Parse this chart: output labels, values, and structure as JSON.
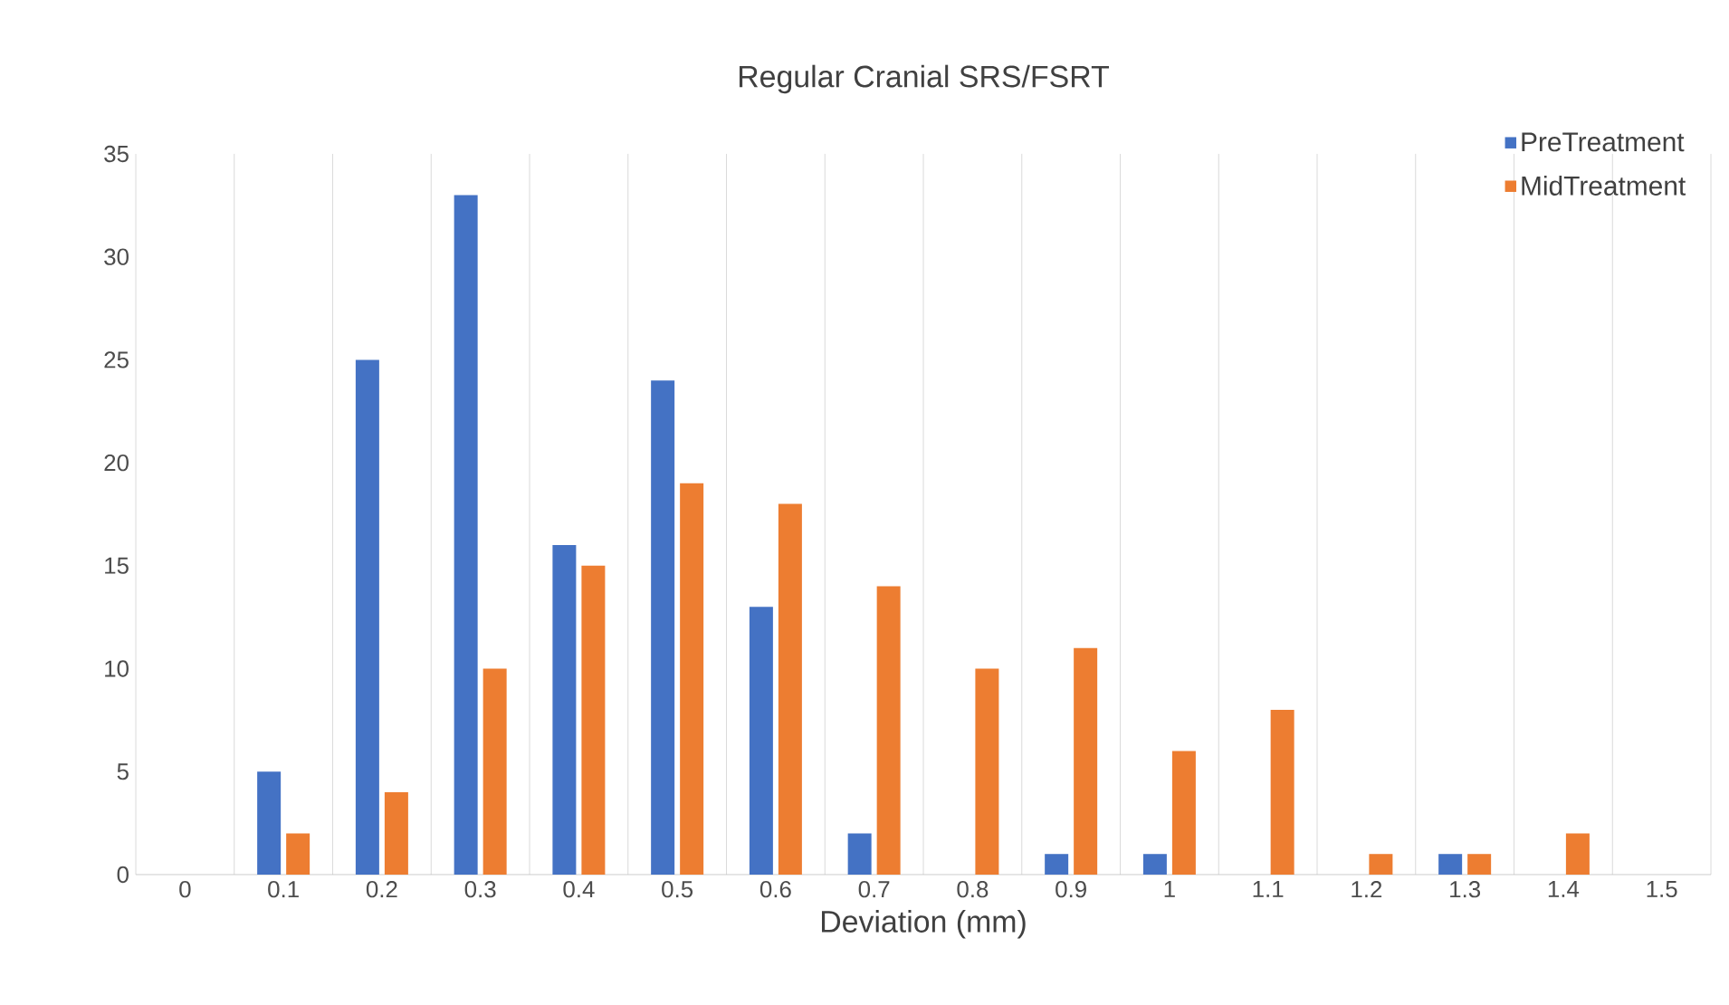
{
  "chart_data": {
    "type": "bar",
    "title": "Regular  Cranial SRS/FSRT",
    "xlabel": "Deviation (mm)",
    "categories": [
      "0",
      "0.1",
      "0.2",
      "0.3",
      "0.4",
      "0.5",
      "0.6",
      "0.7",
      "0.8",
      "0.9",
      "1",
      "1.1",
      "1.2",
      "1.3",
      "1.4",
      "1.5"
    ],
    "series": [
      {
        "name": "PreTreatment",
        "color": "#4472c4",
        "values": [
          0,
          5,
          25,
          33,
          16,
          24,
          13,
          2,
          0,
          1,
          1,
          0,
          0,
          1,
          0,
          null
        ]
      },
      {
        "name": "MidTreatment",
        "color": "#ed7d31",
        "values": [
          0,
          2,
          4,
          10,
          15,
          19,
          18,
          14,
          10,
          11,
          6,
          8,
          1,
          1,
          2,
          null
        ]
      }
    ],
    "ylim": [
      0,
      35
    ],
    "yticks": [
      0,
      5,
      10,
      15,
      20,
      25,
      30,
      35
    ],
    "grid": "x",
    "legend": "top right"
  }
}
